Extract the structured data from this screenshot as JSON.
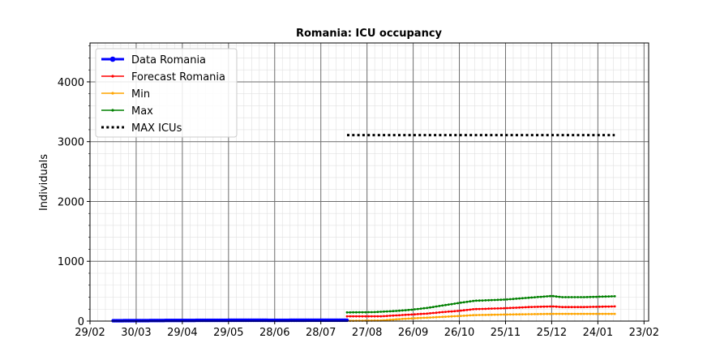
{
  "chart_data": {
    "type": "line",
    "title": "Romania: ICU occupancy",
    "xlabel": "",
    "ylabel": "Individuals",
    "xlim": [
      "2020-02-29",
      "2021-02-26"
    ],
    "ylim": [
      0,
      4650
    ],
    "grid": true,
    "minor_grid": true,
    "legend_position": "top-left",
    "x_tick_labels": [
      "29/02",
      "30/03",
      "29/04",
      "29/05",
      "28/06",
      "28/07",
      "27/08",
      "26/09",
      "26/10",
      "25/11",
      "25/12",
      "24/01",
      "23/02"
    ],
    "x_tick_dates": [
      "2020-02-29",
      "2020-03-30",
      "2020-04-29",
      "2020-05-29",
      "2020-06-28",
      "2020-07-28",
      "2020-08-27",
      "2020-09-26",
      "2020-10-26",
      "2020-11-25",
      "2020-12-25",
      "2021-01-24",
      "2021-02-23"
    ],
    "y_ticks": [
      0,
      1000,
      2000,
      3000,
      4000
    ],
    "series": [
      {
        "name": "Data Romania",
        "color": "#0000ff",
        "style": "solid-thick",
        "marker": "dot",
        "x": [
          "2020-03-15",
          "2020-04-15",
          "2020-05-15",
          "2020-06-15",
          "2020-07-01",
          "2020-07-15",
          "2020-07-31",
          "2020-08-14"
        ],
        "values": [
          5,
          10,
          12,
          14,
          12,
          14,
          15,
          15
        ]
      },
      {
        "name": "Forecast Romania",
        "color": "#ff0000",
        "style": "solid",
        "marker": "small",
        "x": [
          "2020-08-14",
          "2020-09-05",
          "2020-09-15",
          "2020-09-25",
          "2020-10-05",
          "2020-10-15",
          "2020-10-25",
          "2020-11-05",
          "2020-11-25",
          "2020-12-10",
          "2020-12-25",
          "2021-01-01",
          "2021-01-15",
          "2021-02-04"
        ],
        "values": [
          80,
          80,
          95,
          110,
          125,
          150,
          170,
          200,
          215,
          235,
          245,
          235,
          235,
          245
        ]
      },
      {
        "name": "Min",
        "color": "#ffa500",
        "style": "solid",
        "marker": "small",
        "x": [
          "2020-08-14",
          "2020-09-05",
          "2020-09-15",
          "2020-09-25",
          "2020-10-15",
          "2020-11-05",
          "2020-11-25",
          "2020-12-25",
          "2021-01-15",
          "2021-02-04"
        ],
        "values": [
          5,
          10,
          30,
          45,
          70,
          100,
          110,
          120,
          120,
          120
        ]
      },
      {
        "name": "Max",
        "color": "#008000",
        "style": "solid",
        "marker": "small",
        "x": [
          "2020-08-14",
          "2020-09-01",
          "2020-09-15",
          "2020-09-25",
          "2020-10-05",
          "2020-10-15",
          "2020-10-25",
          "2020-11-05",
          "2020-11-25",
          "2020-12-10",
          "2020-12-25",
          "2021-01-01",
          "2021-01-15",
          "2021-02-04"
        ],
        "values": [
          145,
          150,
          170,
          190,
          220,
          260,
          300,
          340,
          360,
          390,
          420,
          400,
          400,
          415
        ]
      },
      {
        "name": "MAX ICUs",
        "color": "#000000",
        "style": "dotted",
        "marker": "none",
        "x": [
          "2020-08-14",
          "2021-02-04"
        ],
        "values": [
          3110,
          3110
        ]
      }
    ]
  }
}
